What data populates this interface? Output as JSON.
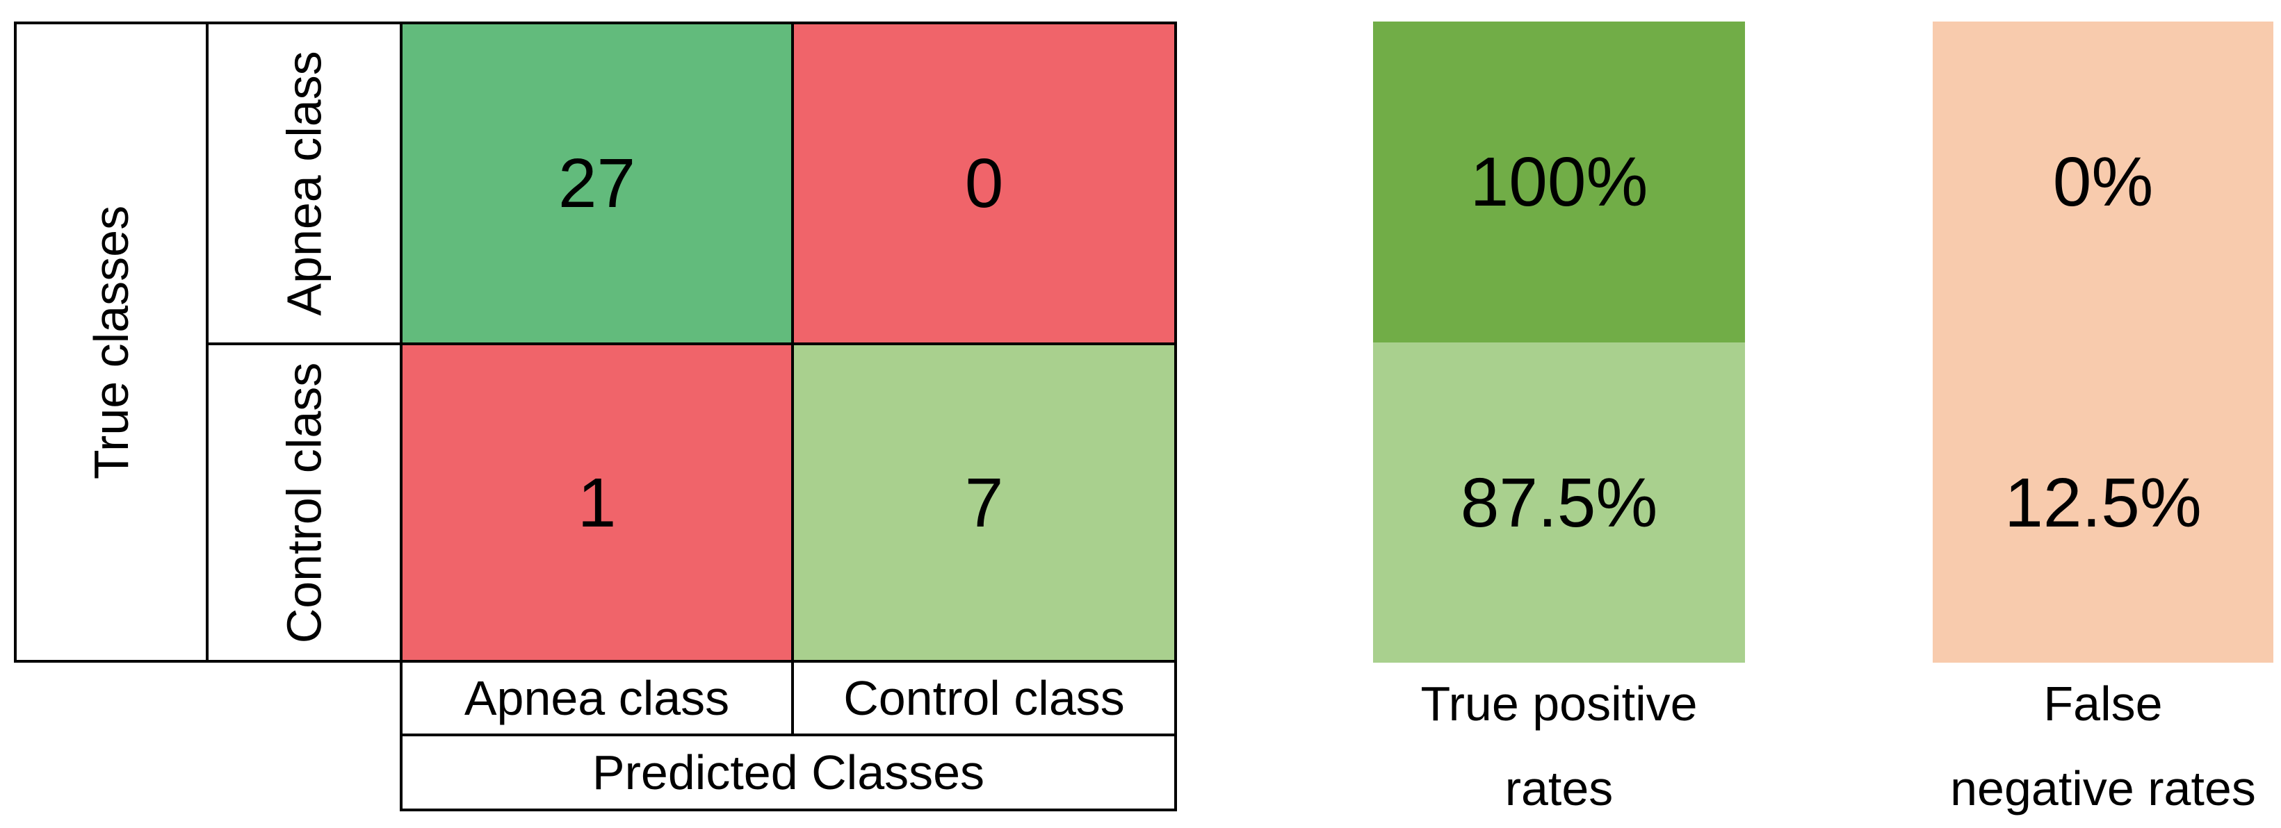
{
  "colors": {
    "cell_green": "#62bb7c",
    "cell_red": "#f0646a",
    "cell_light_green": "#a9d08e",
    "rate_green_dark": "#71ad47",
    "rate_green_light": "#a9d08e",
    "rate_peach": "#f8cbad",
    "border": "#000000",
    "background": "#ffffff"
  },
  "confusion_matrix": {
    "row_axis_label": "True classes",
    "col_axis_label": "Predicted Classes",
    "row_labels": [
      "Apnea class",
      "Control class"
    ],
    "col_labels": [
      "Apnea class",
      "Control class"
    ],
    "cells": [
      [
        "27",
        "0"
      ],
      [
        "1",
        "7"
      ]
    ]
  },
  "rates": {
    "true_positive": {
      "label_line1": "True positive",
      "label_line2": "rates",
      "values": [
        "100%",
        "87.5%"
      ]
    },
    "false_negative": {
      "label_line1": "False",
      "label_line2": "negative rates",
      "values": [
        "0%",
        "12.5%"
      ]
    }
  },
  "chart_data": {
    "type": "heatmap",
    "title": "",
    "rows": [
      "Apnea class",
      "Control class"
    ],
    "columns": [
      "Apnea class",
      "Control class"
    ],
    "row_axis_label": "True classes",
    "col_axis_label": "Predicted Classes",
    "values": [
      [
        27,
        0
      ],
      [
        1,
        7
      ]
    ],
    "cell_colors": [
      [
        "#62bb7c",
        "#f0646a"
      ],
      [
        "#f0646a",
        "#a9d08e"
      ]
    ],
    "derived_columns": [
      {
        "label": "True positive rates",
        "values": [
          "100%",
          "87.5%"
        ],
        "colors": [
          "#71ad47",
          "#a9d08e"
        ]
      },
      {
        "label": "False negative rates",
        "values": [
          "0%",
          "12.5%"
        ],
        "colors": [
          "#f8cbad",
          "#f8cbad"
        ]
      }
    ],
    "legend_position": "none",
    "grid": true
  }
}
